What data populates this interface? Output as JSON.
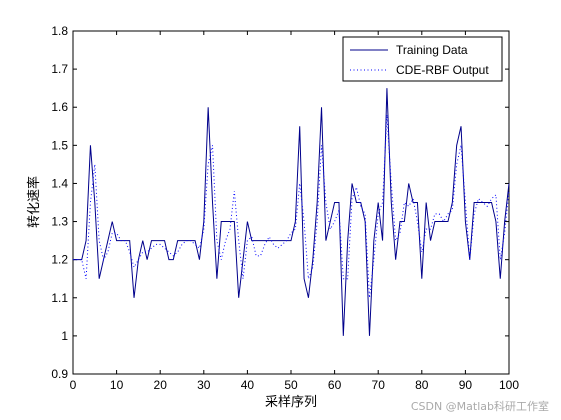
{
  "chart_data": {
    "type": "line",
    "title": "",
    "xlabel": "采样序列",
    "ylabel": "转化速率",
    "xlim": [
      0,
      100
    ],
    "ylim": [
      0.9,
      1.8
    ],
    "xticks": [
      0,
      10,
      20,
      30,
      40,
      50,
      60,
      70,
      80,
      90,
      100
    ],
    "yticks": [
      0.9,
      1.0,
      1.1,
      1.2,
      1.3,
      1.4,
      1.5,
      1.6,
      1.7,
      1.8
    ],
    "grid": false,
    "legend_position": "top-right",
    "x": [
      0,
      1,
      2,
      3,
      4,
      5,
      6,
      7,
      8,
      9,
      10,
      11,
      12,
      13,
      14,
      15,
      16,
      17,
      18,
      19,
      20,
      21,
      22,
      23,
      24,
      25,
      26,
      27,
      28,
      29,
      30,
      31,
      32,
      33,
      34,
      35,
      36,
      37,
      38,
      39,
      40,
      41,
      42,
      43,
      44,
      45,
      46,
      47,
      48,
      49,
      50,
      51,
      52,
      53,
      54,
      55,
      56,
      57,
      58,
      59,
      60,
      61,
      62,
      63,
      64,
      65,
      66,
      67,
      68,
      69,
      70,
      71,
      72,
      73,
      74,
      75,
      76,
      77,
      78,
      79,
      80,
      81,
      82,
      83,
      84,
      85,
      86,
      87,
      88,
      89,
      90,
      91,
      92,
      93,
      94,
      95,
      96,
      97,
      98,
      99,
      100
    ],
    "series": [
      {
        "name": "Training Data",
        "color": "#00008B",
        "style": "solid",
        "values": [
          1.2,
          1.2,
          1.2,
          1.25,
          1.5,
          1.35,
          1.15,
          1.2,
          1.25,
          1.3,
          1.25,
          1.25,
          1.25,
          1.25,
          1.1,
          1.2,
          1.25,
          1.2,
          1.25,
          1.25,
          1.25,
          1.25,
          1.2,
          1.2,
          1.25,
          1.25,
          1.25,
          1.25,
          1.25,
          1.2,
          1.3,
          1.6,
          1.35,
          1.15,
          1.3,
          1.3,
          1.3,
          1.3,
          1.1,
          1.2,
          1.3,
          1.25,
          1.25,
          1.25,
          1.25,
          1.25,
          1.25,
          1.25,
          1.25,
          1.25,
          1.25,
          1.3,
          1.55,
          1.15,
          1.1,
          1.2,
          1.35,
          1.6,
          1.25,
          1.3,
          1.35,
          1.35,
          1.0,
          1.25,
          1.4,
          1.35,
          1.35,
          1.3,
          1.0,
          1.25,
          1.35,
          1.25,
          1.65,
          1.35,
          1.2,
          1.3,
          1.3,
          1.4,
          1.35,
          1.35,
          1.15,
          1.35,
          1.25,
          1.3,
          1.3,
          1.3,
          1.3,
          1.35,
          1.5,
          1.55,
          1.3,
          1.2,
          1.35,
          1.35,
          1.35,
          1.35,
          1.35,
          1.3,
          1.15,
          1.3,
          1.4
        ]
      },
      {
        "name": "CDE-RBF Output",
        "color": "#0000FF",
        "style": "dotted",
        "values": [
          1.2,
          1.2,
          1.2,
          1.15,
          1.35,
          1.45,
          1.25,
          1.2,
          1.22,
          1.27,
          1.27,
          1.25,
          1.25,
          1.22,
          1.18,
          1.2,
          1.22,
          1.22,
          1.23,
          1.24,
          1.24,
          1.23,
          1.22,
          1.21,
          1.22,
          1.24,
          1.25,
          1.25,
          1.24,
          1.23,
          1.28,
          1.45,
          1.5,
          1.25,
          1.2,
          1.25,
          1.28,
          1.38,
          1.25,
          1.15,
          1.25,
          1.26,
          1.21,
          1.21,
          1.24,
          1.26,
          1.24,
          1.23,
          1.24,
          1.25,
          1.27,
          1.28,
          1.4,
          1.3,
          1.15,
          1.18,
          1.3,
          1.5,
          1.35,
          1.28,
          1.3,
          1.33,
          1.15,
          1.15,
          1.36,
          1.39,
          1.34,
          1.32,
          1.1,
          1.2,
          1.32,
          1.35,
          1.58,
          1.4,
          1.25,
          1.27,
          1.35,
          1.34,
          1.36,
          1.3,
          1.22,
          1.28,
          1.28,
          1.32,
          1.32,
          1.3,
          1.32,
          1.33,
          1.45,
          1.5,
          1.35,
          1.2,
          1.32,
          1.36,
          1.35,
          1.34,
          1.36,
          1.37,
          1.2,
          1.27,
          1.38
        ]
      }
    ]
  },
  "watermark": "CSDN @Matlab科研工作室"
}
